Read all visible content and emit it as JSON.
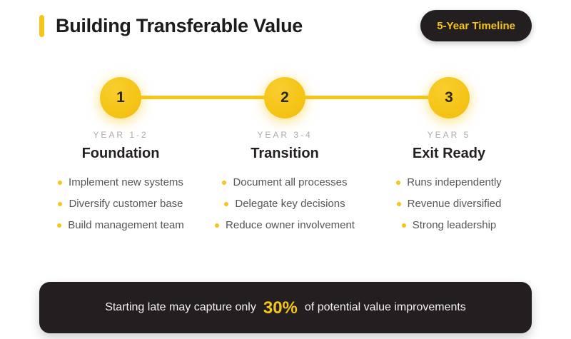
{
  "header": {
    "title": "Building Transferable Value",
    "badge": "5-Year Timeline"
  },
  "colors": {
    "accent": "#F5C518",
    "dark": "#231F20",
    "muted": "#ABABAB",
    "body": "#56565A",
    "ink": "#1E1B1C"
  },
  "timeline": {
    "stages": [
      {
        "number": "1",
        "period": "YEAR 1-2",
        "title": "Foundation",
        "bullets": [
          "Implement new systems",
          "Diversify customer base",
          "Build management team"
        ]
      },
      {
        "number": "2",
        "period": "YEAR 3-4",
        "title": "Transition",
        "bullets": [
          "Document all processes",
          "Delegate key decisions",
          "Reduce owner involvement"
        ]
      },
      {
        "number": "3",
        "period": "YEAR 5",
        "title": "Exit Ready",
        "bullets": [
          "Runs independently",
          "Revenue diversified",
          "Strong leadership"
        ]
      }
    ]
  },
  "footer": {
    "prefix": "Starting late may capture only",
    "highlight": "30%",
    "suffix": "of potential value improvements"
  }
}
